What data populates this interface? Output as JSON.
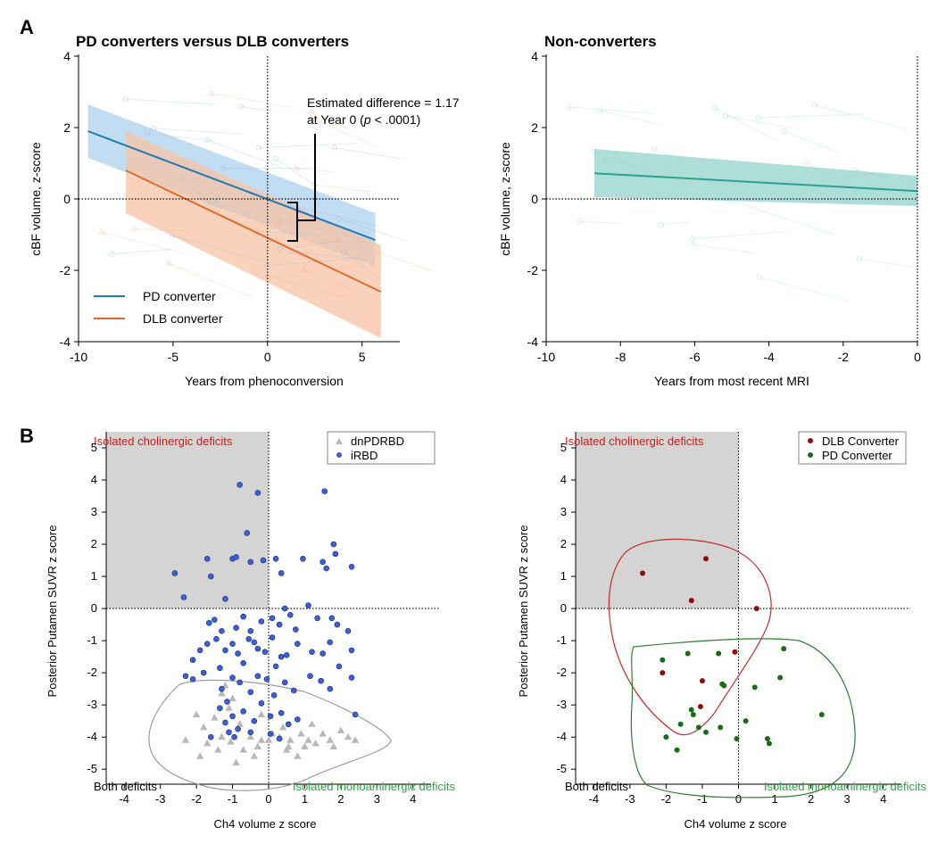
{
  "panel_labels": {
    "a": "A",
    "b": "B"
  },
  "colors": {
    "pd": "#1f77b4",
    "pd_band": "#aed0ee",
    "dlb": "#e0692c",
    "dlb_band": "#f8c3a6",
    "nonconv": "#2aa198",
    "nonconv_band": "#93d3cb",
    "dnpdrbd": "#b8b8b8",
    "irbd": "#3c5fd2",
    "dlb_conv": "#8b0d0d",
    "pd_conv": "#1b6b1b",
    "chol_text": "#c0201e",
    "mono_text": "#2aa63a",
    "shade": "#d4d4d4",
    "hull_grey": "#9b9b9b",
    "hull_red": "#c42b2b",
    "hull_green": "#2e7d32"
  },
  "chart_data": [
    {
      "id": "a1",
      "type": "line",
      "title": "PD converters versus DLB converters",
      "xlabel": "Years from phenoconversion",
      "ylabel": "cBF volume, z-score",
      "xlim": [
        -10,
        7
      ],
      "ylim": [
        -4,
        4
      ],
      "xticks": [
        -10,
        -5,
        0,
        5
      ],
      "yticks": [
        -4,
        -2,
        0,
        2,
        4
      ],
      "annotation": {
        "line1": "Estimated difference = 1.17",
        "line2_pre": "at Year 0 (",
        "line2_p": "p",
        "line2_post": " < .0001)"
      },
      "difference_at_year0": 1.17,
      "legend": {
        "position": "bottom-left",
        "entries": [
          "PD converter",
          "DLB converter"
        ]
      },
      "series": [
        {
          "name": "PD converter",
          "x": [
            -9.5,
            5.7
          ],
          "y": [
            1.9,
            -1.15
          ],
          "ci_upper": [
            2.65,
            -0.4
          ],
          "ci_lower": [
            1.15,
            -1.9
          ]
        },
        {
          "name": "DLB converter",
          "x": [
            -7.5,
            6
          ],
          "y": [
            0.8,
            -2.6
          ],
          "ci_upper": [
            1.9,
            -1.3
          ],
          "ci_lower": [
            -0.4,
            -3.9
          ]
        }
      ]
    },
    {
      "id": "a2",
      "type": "line",
      "title": "Non-converters",
      "xlabel": "Years from most recent MRI",
      "ylabel": "cBF volume, z-score",
      "xlim": [
        -10,
        0
      ],
      "ylim": [
        -4,
        4
      ],
      "xticks": [
        -10,
        -8,
        -6,
        -4,
        -2,
        0
      ],
      "yticks": [
        -4,
        -2,
        0,
        2,
        4
      ],
      "series": [
        {
          "name": "Non-converters",
          "x": [
            -8.7,
            0
          ],
          "y": [
            0.72,
            0.22
          ],
          "ci_upper": [
            1.4,
            0.65
          ],
          "ci_lower": [
            0.05,
            -0.2
          ]
        }
      ]
    },
    {
      "id": "b1",
      "type": "scatter",
      "xlabel": "Ch4 volume z score",
      "ylabel": "Posterior Putamen SUVR z score",
      "xlim": [
        -4.5,
        4.5
      ],
      "ylim": [
        -5.3,
        5.5
      ],
      "xticks": [
        -4,
        -3,
        -2,
        -1,
        0,
        1,
        2,
        3,
        4
      ],
      "yticks": [
        -5,
        -4,
        -3,
        -2,
        -1,
        0,
        1,
        2,
        3,
        4,
        5
      ],
      "quadrant_labels": {
        "top_left": "Isolated cholinergic deficits",
        "bottom_left": "Both deficits",
        "bottom_right": "Isolated monoaminergic deficits"
      },
      "legend": {
        "position": "top-right",
        "entries": [
          "dnPDRBD",
          "iRBD"
        ]
      },
      "series": [
        {
          "name": "dnPDRBD",
          "marker": "triangle",
          "points": [
            [
              -2.3,
              -4.1
            ],
            [
              -2.0,
              -3.3
            ],
            [
              -1.9,
              -4.6
            ],
            [
              -1.8,
              -3.7
            ],
            [
              -1.7,
              -4.2
            ],
            [
              -1.5,
              -3.4
            ],
            [
              -1.4,
              -4.4
            ],
            [
              -1.3,
              -4.0
            ],
            [
              -1.2,
              -2.4
            ],
            [
              -1.1,
              -3.1
            ],
            [
              -1.05,
              -4.15
            ],
            [
              -1.0,
              -2.8
            ],
            [
              -0.9,
              -4.8
            ],
            [
              -0.8,
              -3.6
            ],
            [
              -0.7,
              -4.4
            ],
            [
              -0.5,
              -4.0
            ],
            [
              -0.4,
              -4.6
            ],
            [
              -0.3,
              -4.3
            ],
            [
              -0.2,
              -3.3
            ],
            [
              0.0,
              -4.1
            ],
            [
              0.1,
              -3.9
            ],
            [
              0.3,
              -4.0
            ],
            [
              0.4,
              -3.7
            ],
            [
              0.5,
              -4.4
            ],
            [
              0.6,
              -4.1
            ],
            [
              0.8,
              -4.6
            ],
            [
              0.9,
              -3.9
            ],
            [
              1.0,
              -4.3
            ],
            [
              1.1,
              -4.1
            ],
            [
              1.2,
              -3.6
            ],
            [
              1.3,
              -4.2
            ],
            [
              1.5,
              -3.9
            ],
            [
              1.7,
              -4.1
            ],
            [
              1.8,
              -4.3
            ],
            [
              2.0,
              -3.8
            ],
            [
              2.2,
              -4.0
            ],
            [
              2.4,
              -4.1
            ],
            [
              -0.2,
              -4.1
            ],
            [
              0.55,
              -4.3
            ],
            [
              -1.3,
              -2.65
            ]
          ]
        },
        {
          "name": "iRBD",
          "marker": "circle",
          "points": [
            [
              -2.6,
              1.1
            ],
            [
              -2.35,
              0.35
            ],
            [
              -1.7,
              1.55
            ],
            [
              -1.6,
              1.0
            ],
            [
              -1.2,
              0.3
            ],
            [
              -1.0,
              1.55
            ],
            [
              -0.9,
              1.6
            ],
            [
              -0.8,
              3.85
            ],
            [
              -0.6,
              2.35
            ],
            [
              -0.3,
              3.6
            ],
            [
              -0.5,
              1.45
            ],
            [
              -0.15,
              1.5
            ],
            [
              0.2,
              1.55
            ],
            [
              0.35,
              1.1
            ],
            [
              0.95,
              1.55
            ],
            [
              1.5,
              1.45
            ],
            [
              1.6,
              1.25
            ],
            [
              1.55,
              3.65
            ],
            [
              1.8,
              2.0
            ],
            [
              1.85,
              1.7
            ],
            [
              2.3,
              1.3
            ],
            [
              1.1,
              0.1
            ],
            [
              0.45,
              0.0
            ],
            [
              -1.5,
              -0.35
            ],
            [
              -1.3,
              -0.7
            ],
            [
              -0.9,
              -0.6
            ],
            [
              -0.7,
              -0.25
            ],
            [
              -0.5,
              -0.7
            ],
            [
              -0.2,
              -0.4
            ],
            [
              0.1,
              -0.3
            ],
            [
              0.3,
              -0.5
            ],
            [
              0.6,
              -0.2
            ],
            [
              0.75,
              -0.65
            ],
            [
              1.35,
              -0.3
            ],
            [
              1.75,
              -0.3
            ],
            [
              1.9,
              -0.5
            ],
            [
              2.2,
              -0.7
            ],
            [
              -2.3,
              -2.1
            ],
            [
              -2.1,
              -1.6
            ],
            [
              -1.9,
              -1.3
            ],
            [
              -1.7,
              -1.1
            ],
            [
              -1.65,
              -0.45
            ],
            [
              -1.45,
              -0.95
            ],
            [
              -1.35,
              -1.85
            ],
            [
              -1.2,
              -1.3
            ],
            [
              -1.0,
              -1.1
            ],
            [
              -0.85,
              -1.4
            ],
            [
              -0.7,
              -1.7
            ],
            [
              -0.55,
              -0.95
            ],
            [
              -0.4,
              -1.05
            ],
            [
              -0.3,
              -1.25
            ],
            [
              -0.1,
              -1.35
            ],
            [
              0.1,
              -0.9
            ],
            [
              0.2,
              -1.8
            ],
            [
              0.35,
              -1.5
            ],
            [
              0.5,
              -1.45
            ],
            [
              0.8,
              -1.1
            ],
            [
              1.2,
              -1.35
            ],
            [
              1.5,
              -1.4
            ],
            [
              1.7,
              -1.05
            ],
            [
              1.95,
              -1.8
            ],
            [
              2.3,
              -1.3
            ],
            [
              -2.1,
              -2.2
            ],
            [
              -1.8,
              -2.0
            ],
            [
              -1.3,
              -2.5
            ],
            [
              -1.15,
              -2.9
            ],
            [
              -1.0,
              -2.15
            ],
            [
              -0.8,
              -2.3
            ],
            [
              -0.5,
              -2.6
            ],
            [
              -0.3,
              -2.1
            ],
            [
              -0.05,
              -2.2
            ],
            [
              0.15,
              -2.7
            ],
            [
              0.45,
              -2.3
            ],
            [
              0.7,
              -2.55
            ],
            [
              1.15,
              -2.1
            ],
            [
              1.45,
              -2.25
            ],
            [
              1.7,
              -2.5
            ],
            [
              2.3,
              -2.15
            ],
            [
              -1.35,
              -3.1
            ],
            [
              -1.2,
              -3.55
            ],
            [
              -1.0,
              -3.35
            ],
            [
              -0.85,
              -3.75
            ],
            [
              -0.7,
              -3.2
            ],
            [
              -0.4,
              -3.5
            ],
            [
              -0.2,
              -2.95
            ],
            [
              0.05,
              -3.35
            ],
            [
              0.35,
              -3.25
            ],
            [
              0.55,
              -3.6
            ],
            [
              0.8,
              -3.45
            ],
            [
              -1.6,
              -4.0
            ],
            [
              -1.1,
              -3.85
            ],
            [
              -0.95,
              -4.0
            ],
            [
              -0.5,
              -3.85
            ],
            [
              0.05,
              -3.9
            ],
            [
              0.3,
              -4.05
            ],
            [
              2.4,
              -3.3
            ]
          ]
        }
      ]
    },
    {
      "id": "b2",
      "type": "scatter",
      "xlabel": "Ch4 volume z score",
      "ylabel": "Posterior Putamen SUVR z score",
      "xlim": [
        -4.5,
        4.5
      ],
      "ylim": [
        -5.3,
        5.5
      ],
      "xticks": [
        -4,
        -3,
        -2,
        -1,
        0,
        1,
        2,
        3,
        4
      ],
      "yticks": [
        -5,
        -4,
        -3,
        -2,
        -1,
        0,
        1,
        2,
        3,
        4,
        5
      ],
      "quadrant_labels": {
        "top_left": "Isolated cholinergic deficits",
        "bottom_left": "Both deficits",
        "bottom_right": "Isolated monoaminergic deficits"
      },
      "legend": {
        "position": "top-right",
        "entries": [
          "DLB Converter",
          "PD Converter"
        ]
      },
      "series": [
        {
          "name": "DLB Converter",
          "marker": "circle",
          "points": [
            [
              -2.65,
              1.1
            ],
            [
              -1.3,
              0.25
            ],
            [
              -0.9,
              1.55
            ],
            [
              0.5,
              0.0
            ],
            [
              -0.1,
              -1.35
            ],
            [
              -2.1,
              -2.0
            ],
            [
              -1.0,
              -2.25
            ],
            [
              -1.05,
              -3.05
            ]
          ]
        },
        {
          "name": "PD Converter",
          "marker": "circle",
          "points": [
            [
              -2.1,
              -1.6
            ],
            [
              -1.4,
              -1.4
            ],
            [
              -0.55,
              -1.4
            ],
            [
              -0.4,
              -2.4
            ],
            [
              -0.45,
              -2.35
            ],
            [
              0.45,
              -2.45
            ],
            [
              1.25,
              -1.25
            ],
            [
              1.15,
              -2.15
            ],
            [
              -1.3,
              -3.15
            ],
            [
              -1.25,
              -3.3
            ],
            [
              -1.1,
              -3.7
            ],
            [
              -0.5,
              -3.7
            ],
            [
              0.2,
              -3.5
            ],
            [
              -2.0,
              -4.0
            ],
            [
              -1.6,
              -3.6
            ],
            [
              -1.7,
              -4.4
            ],
            [
              -0.9,
              -3.85
            ],
            [
              -0.05,
              -4.05
            ],
            [
              0.8,
              -4.05
            ],
            [
              0.85,
              -4.2
            ],
            [
              2.3,
              -3.3
            ]
          ]
        }
      ]
    }
  ]
}
